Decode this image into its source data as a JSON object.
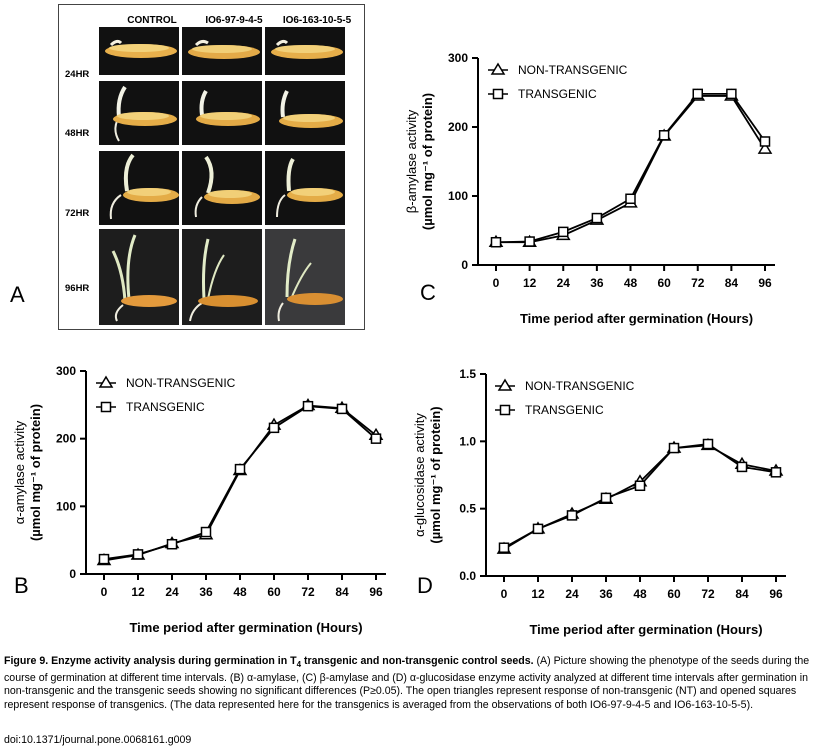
{
  "panel_a": {
    "letter": "A",
    "columns": [
      "CONTROL",
      "IO6-97-9-4-5",
      "IO6-163-10-5-5"
    ],
    "rows": [
      "24HR",
      "48HR",
      "72HR",
      "96HR"
    ]
  },
  "chart_data": [
    {
      "id": "C",
      "type": "line",
      "letter": "C",
      "xlabel": "Time period after germination (Hours)",
      "ylabel_line1": "β-amylase activity",
      "ylabel_line2": "(µmol mg⁻¹ of protein)",
      "x": [
        0,
        12,
        24,
        36,
        48,
        60,
        72,
        84,
        96
      ],
      "xlim": [
        0,
        96
      ],
      "ylim": [
        0,
        300
      ],
      "yticks": [
        0,
        100,
        200,
        300
      ],
      "ytick_labels": [
        "0",
        "100",
        "200",
        "300"
      ],
      "series": [
        {
          "name": "NON-TRANSGENIC",
          "marker": "triangle",
          "values": [
            33,
            33,
            43,
            65,
            90,
            187,
            245,
            245,
            168
          ]
        },
        {
          "name": "TRANSGENIC",
          "marker": "square",
          "values": [
            33,
            34,
            48,
            68,
            96,
            188,
            248,
            248,
            179
          ]
        }
      ]
    },
    {
      "id": "B",
      "type": "line",
      "letter": "B",
      "xlabel": "Time period after germination (Hours)",
      "ylabel_line1": "α-amylase activity",
      "ylabel_line2": "(µmol mg⁻¹ of protein)",
      "x": [
        0,
        12,
        24,
        36,
        48,
        60,
        72,
        84,
        96
      ],
      "xlim": [
        0,
        96
      ],
      "ylim": [
        0,
        300
      ],
      "yticks": [
        0,
        100,
        200,
        300
      ],
      "ytick_labels": [
        "0",
        "100",
        "200",
        "300"
      ],
      "series": [
        {
          "name": "NON-TRANSGENIC",
          "marker": "triangle",
          "values": [
            20,
            28,
            45,
            58,
            153,
            220,
            249,
            245,
            205
          ]
        },
        {
          "name": "TRANSGENIC",
          "marker": "square",
          "values": [
            22,
            29,
            44,
            62,
            155,
            216,
            248,
            244,
            200
          ]
        }
      ]
    },
    {
      "id": "D",
      "type": "line",
      "letter": "D",
      "xlabel": "Time period after germination (Hours)",
      "ylabel_line1": "α-glucosidase activity",
      "ylabel_line2": "(µmol mg⁻¹ of protein)",
      "x": [
        0,
        12,
        24,
        36,
        48,
        60,
        72,
        84,
        96
      ],
      "xlim": [
        0,
        96
      ],
      "ylim": [
        0,
        1.5
      ],
      "yticks": [
        0,
        0.5,
        1.0,
        1.5
      ],
      "ytick_labels": [
        "0.0",
        "0.5",
        "1.0",
        "1.5"
      ],
      "series": [
        {
          "name": "NON-TRANSGENIC",
          "marker": "triangle",
          "values": [
            0.2,
            0.35,
            0.46,
            0.57,
            0.7,
            0.95,
            0.97,
            0.83,
            0.78
          ]
        },
        {
          "name": "TRANSGENIC",
          "marker": "square",
          "values": [
            0.21,
            0.35,
            0.45,
            0.58,
            0.67,
            0.95,
            0.98,
            0.81,
            0.77
          ]
        }
      ]
    }
  ],
  "caption": {
    "title_prefix": "Figure 9. Enzyme activity analysis during germination in T",
    "title_sub": "4",
    "title_suffix": " transgenic and non-transgenic control seeds.",
    "body": " (A) Picture showing the phenotype of the seeds during the course of germination at different time intervals. (B) α-amylase, (C) β-amylase and (D) α-glucosidase enzyme activity analyzed at different time intervals after germination in non-transgenic and the transgenic seeds showing no significant differences (P≥0.05). The open triangles represent response of non-transgenic (NT) and opened squares represent response of transgenics. (The data represented here for the transgenics is averaged from the observations of both IO6-97-9-4-5 and IO6-163-10-5-5).",
    "doi": "doi:10.1371/journal.pone.0068161.g009"
  }
}
